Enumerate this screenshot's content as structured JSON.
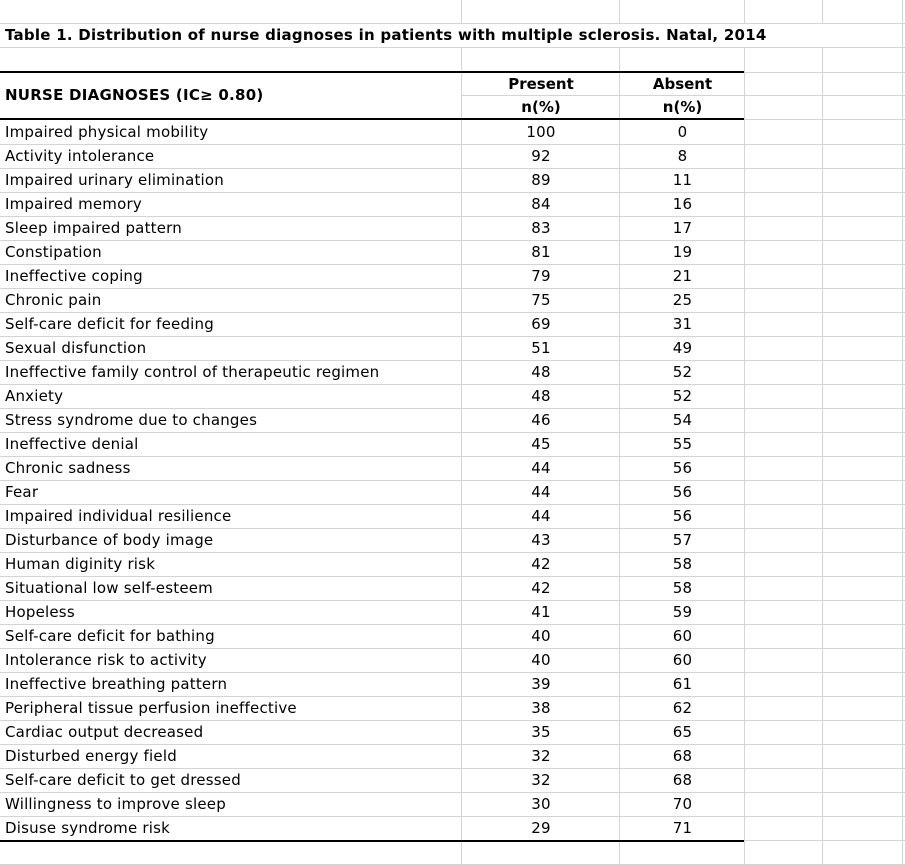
{
  "title": "Table 1. Distribution of nurse diagnoses in patients with multiple sclerosis. Natal, 2014",
  "table": {
    "diagnoses_header": "NURSE DIAGNOSES (IC≥ 0.80)",
    "columns": {
      "present": "Present",
      "absent": "Absent",
      "unit": "n(%)"
    },
    "rows": [
      {
        "diagnosis": "Impaired physical mobility",
        "present": 100,
        "absent": 0
      },
      {
        "diagnosis": "Activity intolerance",
        "present": 92,
        "absent": 8
      },
      {
        "diagnosis": "Impaired urinary elimination",
        "present": 89,
        "absent": 11
      },
      {
        "diagnosis": "Impaired memory",
        "present": 84,
        "absent": 16
      },
      {
        "diagnosis": "Sleep impaired pattern",
        "present": 83,
        "absent": 17
      },
      {
        "diagnosis": "Constipation",
        "present": 81,
        "absent": 19
      },
      {
        "diagnosis": "Ineffective coping",
        "present": 79,
        "absent": 21
      },
      {
        "diagnosis": "Chronic pain",
        "present": 75,
        "absent": 25
      },
      {
        "diagnosis": "Self-care deficit for feeding",
        "present": 69,
        "absent": 31
      },
      {
        "diagnosis": "Sexual disfunction",
        "present": 51,
        "absent": 49
      },
      {
        "diagnosis": "Ineffective family control of therapeutic regimen",
        "present": 48,
        "absent": 52
      },
      {
        "diagnosis": "Anxiety",
        "present": 48,
        "absent": 52
      },
      {
        "diagnosis": "Stress syndrome due to changes",
        "present": 46,
        "absent": 54
      },
      {
        "diagnosis": "Ineffective denial",
        "present": 45,
        "absent": 55
      },
      {
        "diagnosis": "Chronic sadness",
        "present": 44,
        "absent": 56
      },
      {
        "diagnosis": "Fear",
        "present": 44,
        "absent": 56
      },
      {
        "diagnosis": "Impaired individual resilience",
        "present": 44,
        "absent": 56
      },
      {
        "diagnosis": "Disturbance of body image",
        "present": 43,
        "absent": 57
      },
      {
        "diagnosis": "Human diginity risk",
        "present": 42,
        "absent": 58
      },
      {
        "diagnosis": "Situational low self-esteem",
        "present": 42,
        "absent": 58
      },
      {
        "diagnosis": "Hopeless",
        "present": 41,
        "absent": 59
      },
      {
        "diagnosis": "Self-care deficit for bathing",
        "present": 40,
        "absent": 60
      },
      {
        "diagnosis": "Intolerance risk to activity",
        "present": 40,
        "absent": 60
      },
      {
        "diagnosis": "Ineffective breathing pattern",
        "present": 39,
        "absent": 61
      },
      {
        "diagnosis": "Peripheral tissue perfusion ineffective",
        "present": 38,
        "absent": 62
      },
      {
        "diagnosis": "Cardiac output decreased",
        "present": 35,
        "absent": 65
      },
      {
        "diagnosis": "Disturbed energy field",
        "present": 32,
        "absent": 68
      },
      {
        "diagnosis": "Self-care deficit to get dressed",
        "present": 32,
        "absent": 68
      },
      {
        "diagnosis": "Willingness to improve sleep",
        "present": 30,
        "absent": 70
      },
      {
        "diagnosis": "Disuse syndrome risk",
        "present": 29,
        "absent": 71
      }
    ]
  },
  "colors": {
    "background": "#ffffff",
    "text": "#000000",
    "gridline": "#d4d4d4",
    "table_border": "#000000"
  }
}
